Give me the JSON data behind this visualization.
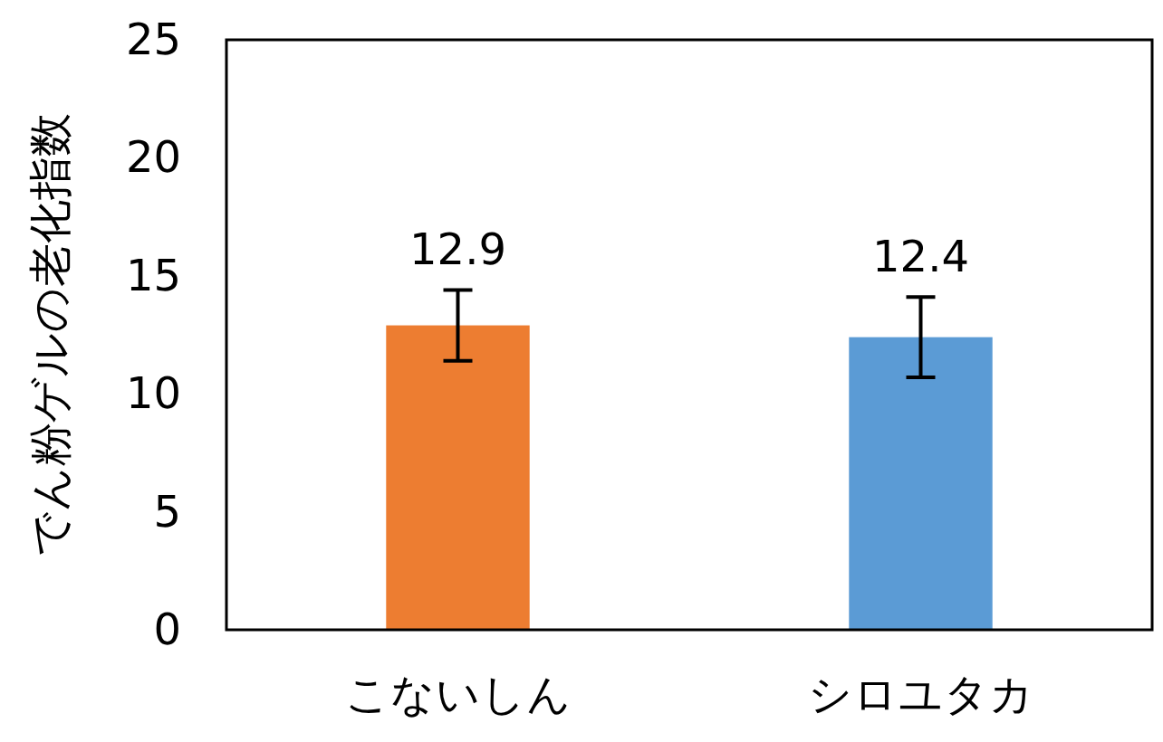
{
  "chart_data": {
    "type": "bar",
    "ylabel": "でん粉ゲルの老化指数",
    "categories": [
      "こないしん",
      "シロユタカ"
    ],
    "values": [
      12.9,
      12.4
    ],
    "colors": [
      "#ed7d31",
      "#5b9bd5"
    ],
    "errors": [
      1.5,
      1.7
    ],
    "ylim": [
      0,
      25
    ],
    "yticks": [
      0,
      5,
      10,
      15,
      20,
      25
    ],
    "grid": false,
    "data_labels": true
  }
}
